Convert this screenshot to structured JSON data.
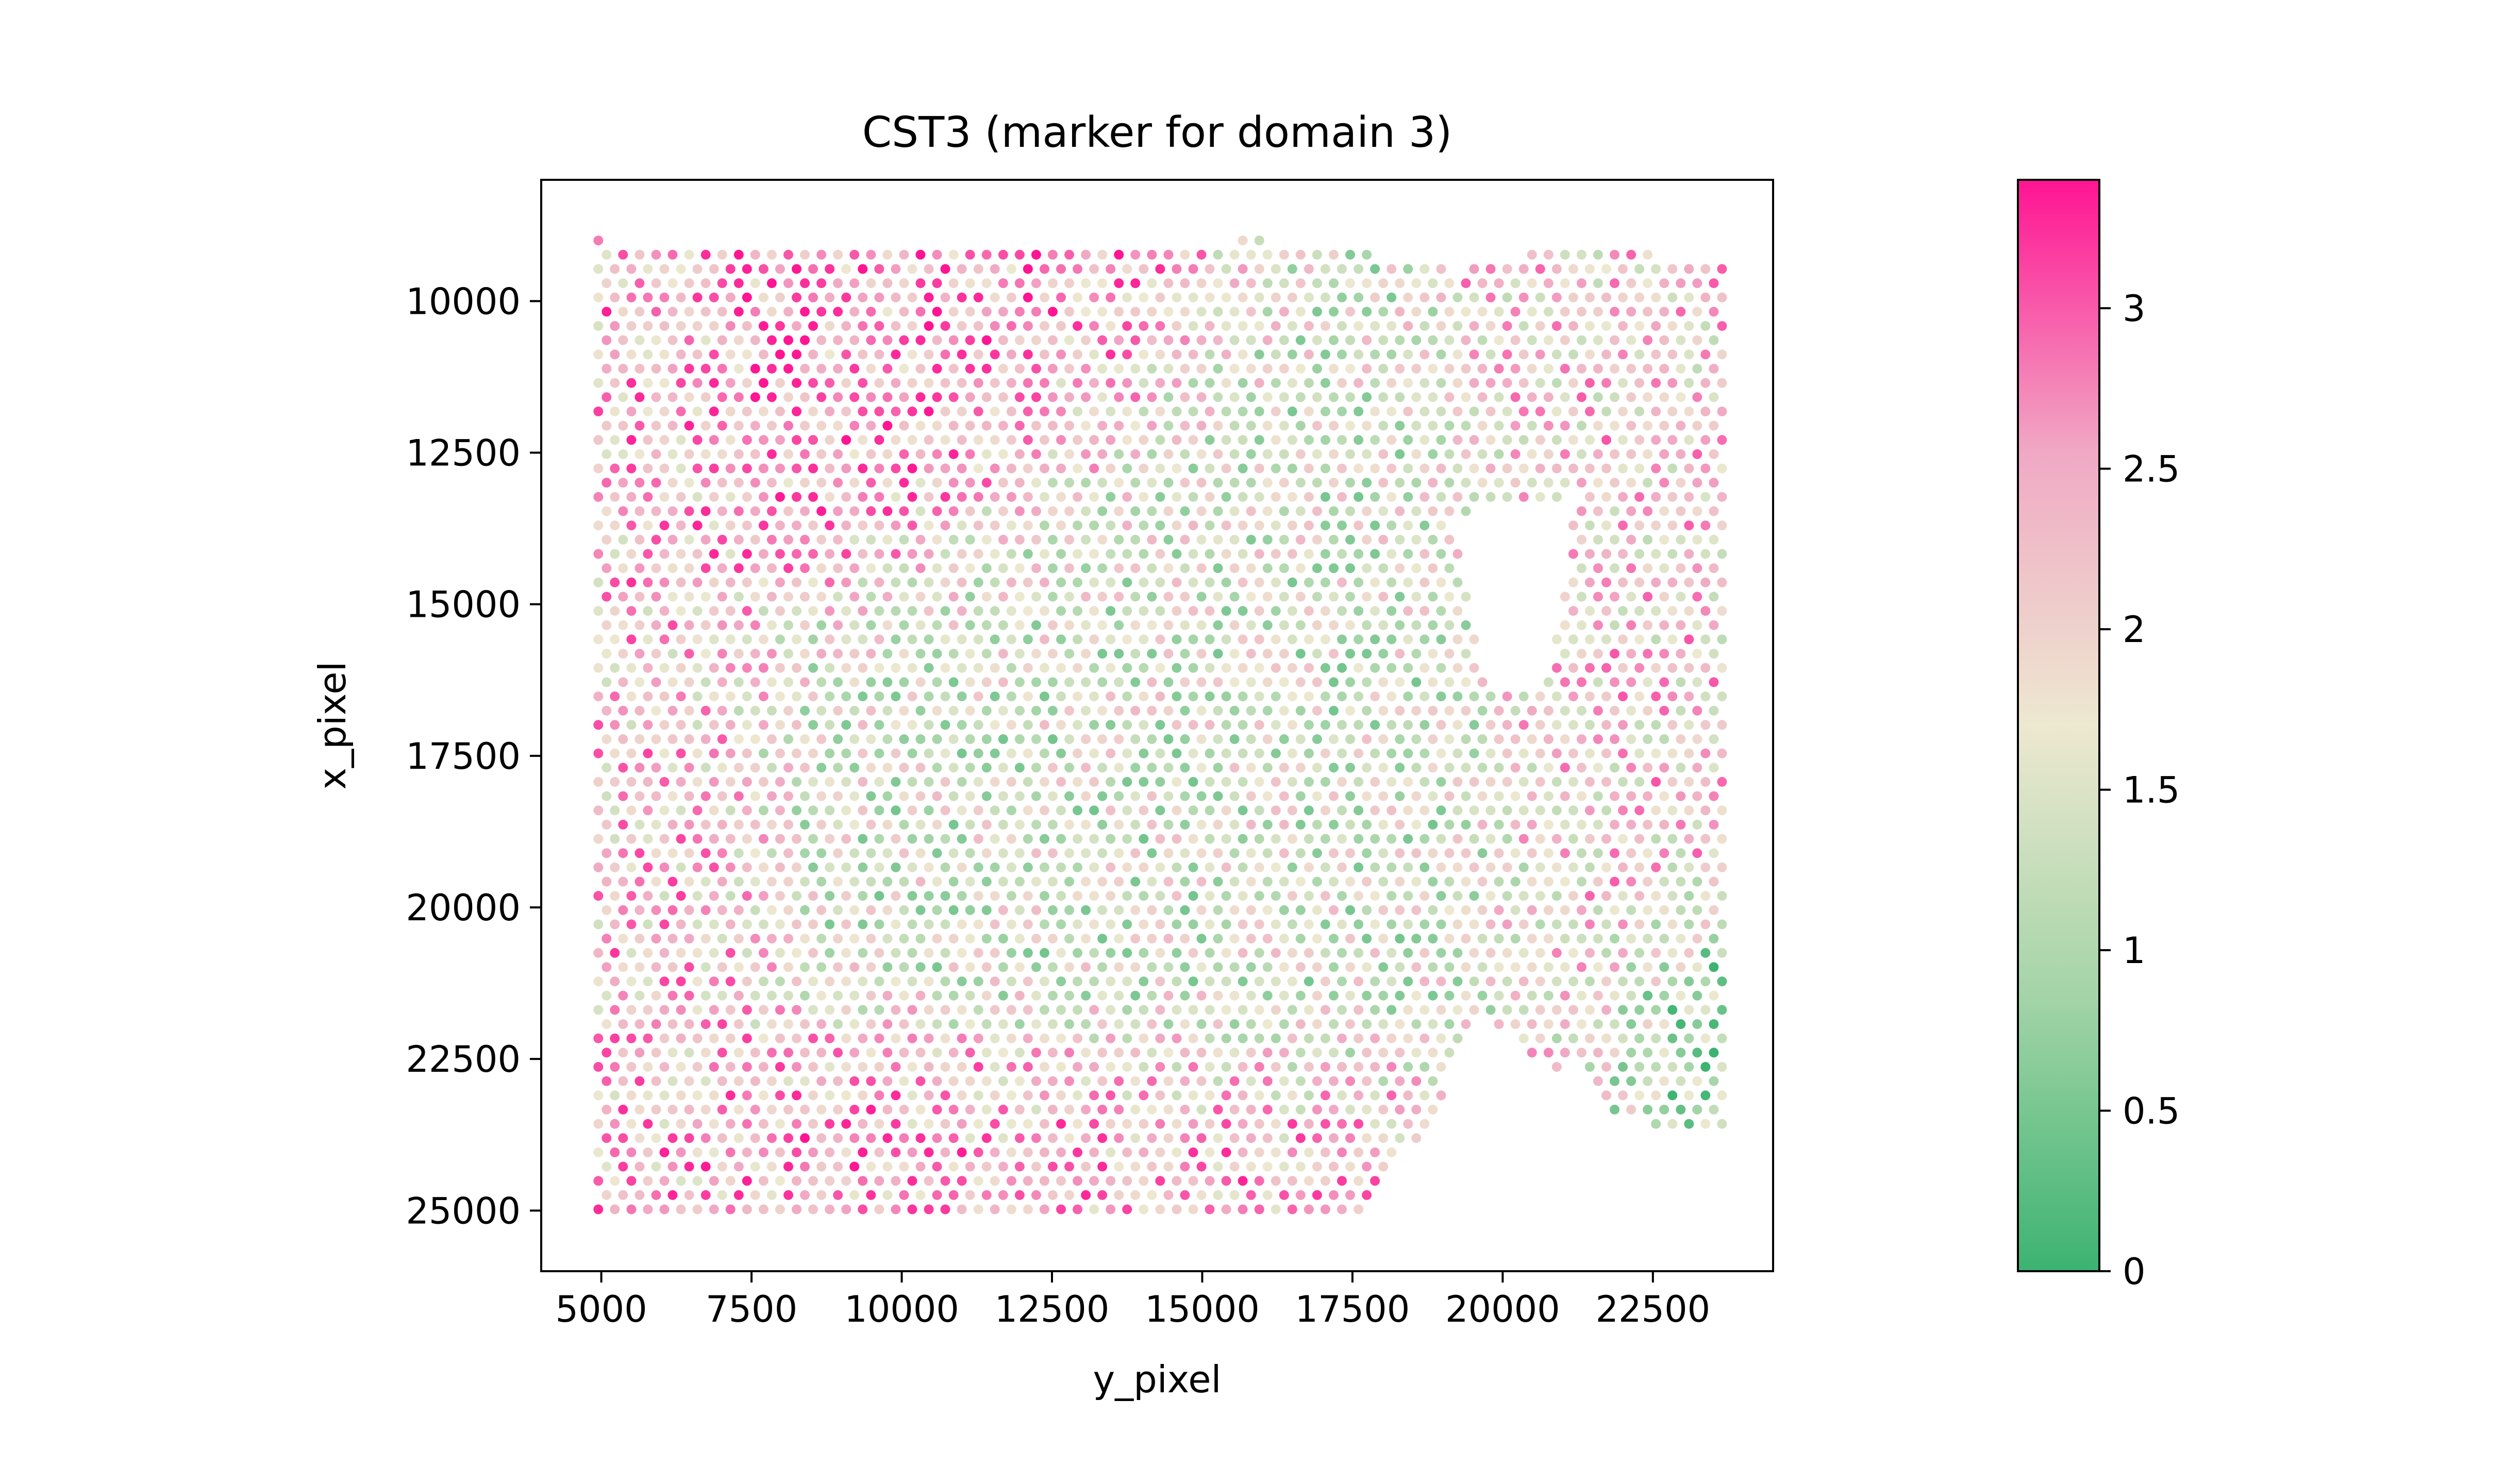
{
  "chart_data": {
    "type": "scatter",
    "title": "CST3 (marker for domain 3)",
    "xlabel": "y_pixel",
    "ylabel": "x_pixel",
    "xlim": [
      4000,
      24500
    ],
    "ylim": [
      26000,
      8000
    ],
    "y_inverted": true,
    "x_ticks": [
      5000,
      7500,
      10000,
      12500,
      15000,
      17500,
      20000,
      22500
    ],
    "x_tick_labels": [
      "5000",
      "7500",
      "10000",
      "12500",
      "15000",
      "17500",
      "20000",
      "22500"
    ],
    "y_ticks": [
      10000,
      12500,
      15000,
      17500,
      20000,
      22500,
      25000
    ],
    "y_tick_labels": [
      "10000",
      "12500",
      "15000",
      "17500",
      "20000",
      "22500",
      "25000"
    ],
    "colorbar": {
      "min": 0,
      "max": 3.4,
      "ticks": [
        0,
        0.5,
        1,
        1.5,
        2,
        2.5,
        3
      ],
      "tick_labels": [
        "0",
        "0.5",
        "1",
        "1.5",
        "2",
        "2.5",
        "3"
      ],
      "colors": [
        "#3cb371",
        "#a3d4a7",
        "#ede8d0",
        "#f0a9c4",
        "#ff1493"
      ]
    },
    "spot_grid": {
      "x_start": 4950,
      "x_end": 23650,
      "x_step": 275,
      "y_start": 9000,
      "y_end": 25200,
      "y_step": 235
    },
    "tissue_region": {
      "top_edge": [
        [
          4950,
          9000
        ],
        [
          15400,
          9200
        ],
        [
          15600,
          8900
        ],
        [
          16700,
          9100
        ],
        [
          18300,
          9300
        ],
        [
          19200,
          9500
        ],
        [
          20400,
          9200
        ],
        [
          21700,
          9100
        ],
        [
          23650,
          9400
        ]
      ],
      "bottom_edge": [
        [
          4950,
          25000
        ],
        [
          5500,
          25200
        ],
        [
          17500,
          25200
        ],
        [
          18800,
          23500
        ],
        [
          19600,
          21700
        ],
        [
          20300,
          22300
        ],
        [
          21000,
          23000
        ],
        [
          22200,
          23500
        ],
        [
          23650,
          23800
        ]
      ],
      "holes": [
        [
          [
            19200,
            13500
          ],
          [
            21200,
            13200
          ],
          [
            20800,
            16200
          ],
          [
            19700,
            16500
          ]
        ],
        [
          [
            19350,
            22800
          ],
          [
            21400,
            22600
          ],
          [
            21700,
            25400
          ],
          [
            19350,
            25400
          ]
        ]
      ]
    },
    "expression_pattern": [
      {
        "region": "left strip",
        "x_range": [
          4950,
          6500
        ],
        "mean_value": 2.3
      },
      {
        "region": "top-left",
        "x_range": [
          5500,
          12000
        ],
        "y_range": [
          9000,
          14000
        ],
        "mean_value": 2.6
      },
      {
        "region": "center",
        "x_range": [
          9000,
          18500
        ],
        "y_range": [
          14000,
          22000
        ],
        "mean_value": 1.4
      },
      {
        "region": "bottom band",
        "x_range": [
          5000,
          16000
        ],
        "y_range": [
          22500,
          25200
        ],
        "mean_value": 2.5
      },
      {
        "region": "right side",
        "x_range": [
          20500,
          23650
        ],
        "y_range": [
          9500,
          22000
        ],
        "mean_value": 2.1
      },
      {
        "region": "far right edge",
        "x_range": [
          23200,
          23650
        ],
        "y_range": [
          20500,
          23800
        ],
        "mean_value": 0.6
      }
    ]
  }
}
